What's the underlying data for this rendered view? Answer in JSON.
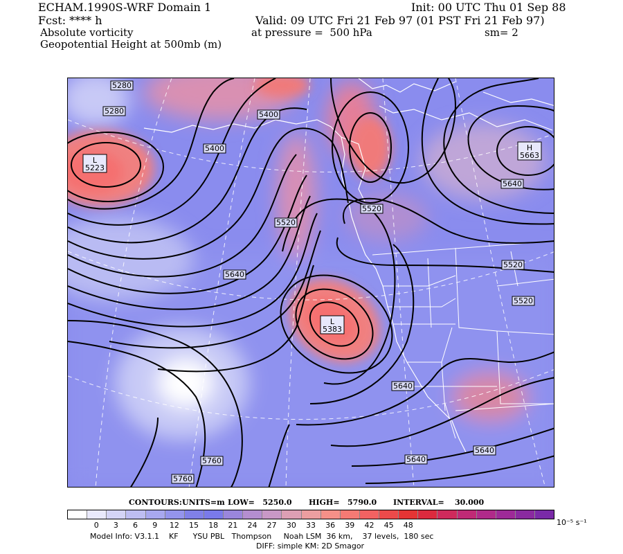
{
  "header": {
    "model": "ECHAM.1990S-WRF Domain 1",
    "init": "Init: 00 UTC Thu 01 Sep 88",
    "fcst": "Fcst: **** h",
    "valid": "Valid: 09 UTC Fri 21 Feb 97 (01 PST Fri 21 Feb 97)",
    "field1": "Absolute vorticity",
    "pressure": "at pressure =  500 hPa",
    "smooth": "sm= 2",
    "field2": "Geopotential Height at 500mb (m)"
  },
  "contour_labels": [
    "5280",
    "5280",
    "5400",
    "5400",
    "5520",
    "5520",
    "5640",
    "5640",
    "5520",
    "5520",
    "5640",
    "5640",
    "5760",
    "5760",
    "5640"
  ],
  "extrema": [
    {
      "type": "L",
      "value": "5223"
    },
    {
      "type": "H",
      "value": "5663"
    },
    {
      "type": "L",
      "value": "5383"
    }
  ],
  "contour_info": {
    "contours_label": "CONTOURS:",
    "units": "UNITS=m",
    "low": "LOW=   5250.0",
    "high": "HIGH=   5790.0",
    "interval": "INTERVAL=    30.000"
  },
  "colorbar": {
    "colors": [
      "#ffffff",
      "#e9e9fb",
      "#d4d4f6",
      "#bebef2",
      "#a8a8ef",
      "#9494ec",
      "#8080e8",
      "#7a7aea",
      "#9a86dc",
      "#b48ed0",
      "#c898c6",
      "#dd9fb4",
      "#ec9ea0",
      "#f59088",
      "#f57a74",
      "#f26262",
      "#ec4a4a",
      "#e53434",
      "#dc2a3e",
      "#cf2a5c",
      "#c02a76",
      "#b02a8a",
      "#9e2a98",
      "#8a2aa0",
      "#7a2aa8"
    ],
    "ticks": [
      "0",
      "3",
      "6",
      "9",
      "12",
      "15",
      "18",
      "21",
      "24",
      "27",
      "30",
      "33",
      "36",
      "39",
      "42",
      "45",
      "48"
    ],
    "units": "10⁻⁵ s⁻¹"
  },
  "footer": {
    "model_info": "Model Info: V3.1.1    KF      YSU PBL   Thompson     Noah LSM  36 km,    37 levels,  180 sec",
    "diff": "DIFF: simple KM: 2D Smagor"
  },
  "colors": {
    "background_field": "#8a8cee",
    "high_vorticity": "#f07272",
    "low_vorticity": "#ffffff",
    "contour": "#000000",
    "map_lines": "#ffffff"
  }
}
